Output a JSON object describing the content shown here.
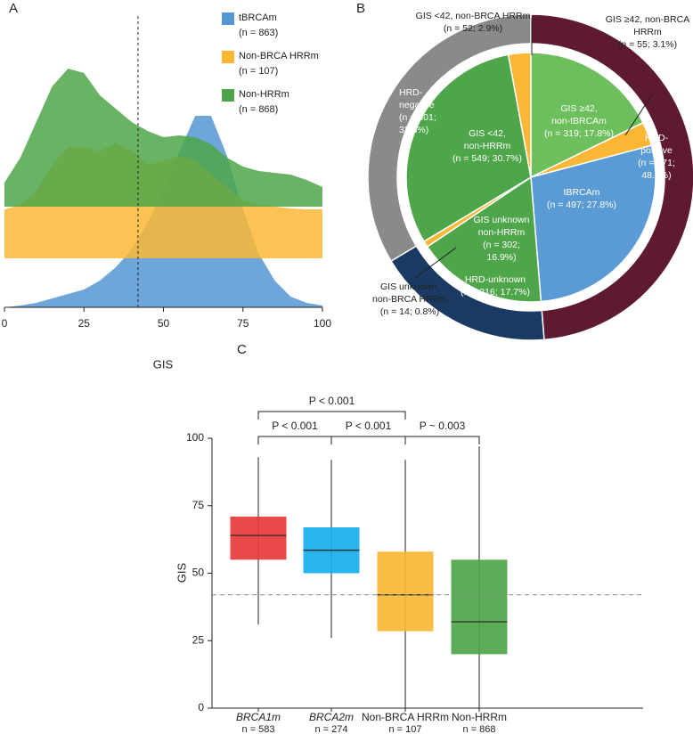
{
  "chart_data": [
    {
      "type": "ridgeline",
      "panel_label": "A",
      "x_label": "GIS",
      "x": [
        0,
        5,
        10,
        15,
        20,
        25,
        30,
        35,
        40,
        45,
        50,
        55,
        60,
        65,
        70,
        75,
        80,
        85,
        90,
        95,
        100
      ],
      "xlim": [
        0,
        100
      ],
      "xticks": [
        0,
        25,
        50,
        75,
        100
      ],
      "threshold": 42,
      "series": [
        {
          "name": "tBRCAm",
          "count_label": "(n = 863)",
          "color": "#5596d2",
          "values": [
            0,
            0.02,
            0.05,
            0.1,
            0.15,
            0.2,
            0.3,
            0.45,
            0.65,
            0.95,
            1.3,
            1.75,
            2.15,
            2.15,
            1.7,
            1.1,
            0.6,
            0.3,
            0.12,
            0.05,
            0.02
          ]
        },
        {
          "name": "Non-BRCA HRRm",
          "count_label": "(n = 107)",
          "color": "#fbb735",
          "values": [
            0.55,
            0.6,
            0.75,
            1.05,
            1.25,
            1.25,
            1.2,
            1.3,
            1.2,
            1.05,
            1.1,
            1.15,
            1.1,
            0.95,
            0.8,
            0.65,
            0.6,
            0.58,
            0.56,
            0.55,
            0.55
          ]
        },
        {
          "name": "Non-HRRm",
          "count_label": "(n = 868)",
          "color": "#4fa64a",
          "values": [
            0.27,
            0.55,
            0.95,
            1.35,
            1.55,
            1.5,
            1.25,
            1.1,
            0.95,
            0.85,
            0.78,
            0.8,
            0.78,
            0.7,
            0.55,
            0.45,
            0.4,
            0.38,
            0.36,
            0.3,
            0.22
          ]
        }
      ]
    },
    {
      "type": "donut",
      "panel_label": "B",
      "outer": {
        "values": [
          48.7,
          17.7,
          33.6
        ],
        "colors": [
          "#5e1a32",
          "#1b3a63",
          "#8a8a8a"
        ],
        "labels": [
          [
            "HRD-",
            "positive"
          ],
          [
            "HRD-unknown"
          ],
          [
            "HRD-",
            "negative"
          ]
        ],
        "value_labels": [
          [
            "(n = 871;",
            "48.7%)"
          ],
          [
            "(n = 316; 17.7%)"
          ],
          [
            "(n = 601;",
            "33.6%)"
          ]
        ]
      },
      "inner": {
        "values": [
          17.8,
          3.1,
          27.8,
          16.9,
          0.8,
          30.7,
          2.9
        ],
        "colors": [
          "#6cbf5c",
          "#fbb735",
          "#5b9bd5",
          "#4fa64a",
          "#fbb735",
          "#4fa64a",
          "#fbb735"
        ],
        "labels": [
          [
            "GIS ≥42,",
            "non-tBRCAm"
          ],
          [
            "GIS ≥42, non-BRCA",
            "HRRm"
          ],
          [
            "tBRCAm"
          ],
          [
            "GIS unknown",
            "non-HRRm"
          ],
          [
            "GIS unknown,",
            "non-BRCA HRRm"
          ],
          [
            "GIS <42,",
            "non-HRRm"
          ],
          [
            "GIS <42, non-BRCA HRRm"
          ]
        ],
        "value_labels": [
          [
            "(n = 319; 17.8%)"
          ],
          [
            "(n = 55; 3.1%)"
          ],
          [
            "(n = 497; 27.8%)"
          ],
          [
            "(n = 302;",
            "16.9%)"
          ],
          [
            "(n = 14; 0.8%)"
          ],
          [
            "(n = 549; 30.7%)"
          ],
          [
            "(n = 52; 2.9%)"
          ]
        ]
      }
    },
    {
      "type": "box",
      "panel_label": "C",
      "y_label": "GIS",
      "categories": [
        "BRCA1m",
        "BRCA2m",
        "Non-BRCA HRRm",
        "Non-HRRm"
      ],
      "category_counts": [
        "n = 583",
        "n = 274",
        "n = 107",
        "n = 868"
      ],
      "colors": [
        "#e8393a",
        "#19aeef",
        "#fbb735",
        "#4fa64a"
      ],
      "whisker_low": [
        31,
        26,
        0,
        0
      ],
      "q1": [
        55,
        50,
        28.5,
        20
      ],
      "median": [
        64,
        58.5,
        42,
        32
      ],
      "q3": [
        71,
        67,
        58,
        55
      ],
      "whisker_high": [
        93,
        92,
        92,
        97
      ],
      "ylim": [
        0,
        100
      ],
      "yticks": [
        0,
        25,
        50,
        75,
        100
      ],
      "threshold": 42,
      "annotations": [
        "P < 0.001",
        "P < 0.001",
        "P < 0.001",
        "P ~ 0.003"
      ]
    }
  ]
}
